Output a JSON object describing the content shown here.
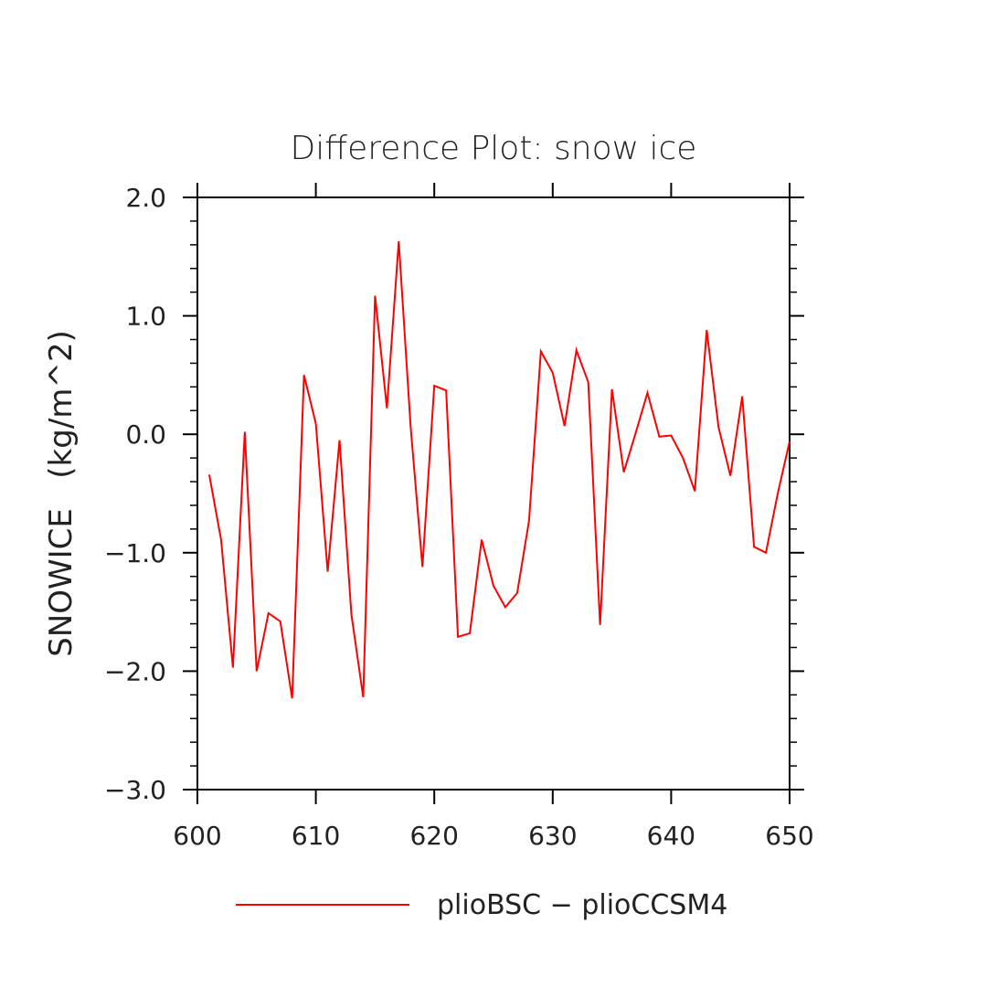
{
  "chart_data": {
    "type": "line",
    "title": "Difference Plot: snow ice",
    "xlabel": "",
    "ylabel": "SNOWICE   (kg/m^2)",
    "xlim": [
      600,
      650
    ],
    "ylim": [
      -3.0,
      2.0
    ],
    "x_ticks": [
      600,
      610,
      620,
      630,
      640,
      650
    ],
    "x_tick_labels": [
      "600",
      "610",
      "620",
      "630",
      "640",
      "650"
    ],
    "y_ticks": [
      2.0,
      1.0,
      0.0,
      -1.0,
      -2.0,
      -3.0
    ],
    "y_tick_labels": [
      "2.0",
      "1.0",
      "0.0",
      "−1.0",
      "−2.0",
      "−3.0"
    ],
    "grid": false,
    "legend_position": "bottom",
    "series": [
      {
        "name": "plioBSC − plioCCSM4",
        "color": "#ff0000",
        "x": [
          601,
          602,
          603,
          604,
          605,
          606,
          607,
          608,
          609,
          610,
          611,
          612,
          613,
          614,
          615,
          616,
          617,
          618,
          619,
          620,
          621,
          622,
          623,
          624,
          625,
          626,
          627,
          628,
          629,
          630,
          631,
          632,
          633,
          634,
          635,
          636,
          637,
          638,
          639,
          640,
          641,
          642,
          643,
          644,
          645,
          646,
          647,
          648,
          649,
          650
        ],
        "values": [
          -0.34,
          -0.89,
          -1.97,
          0.02,
          -2.0,
          -1.51,
          -1.58,
          -2.23,
          0.5,
          0.09,
          -1.16,
          -0.05,
          -1.52,
          -2.22,
          1.17,
          0.22,
          1.63,
          0.07,
          -1.12,
          0.41,
          0.37,
          -1.71,
          -1.68,
          -0.89,
          -1.28,
          -1.46,
          -1.34,
          -0.73,
          0.7,
          0.52,
          0.07,
          0.71,
          0.44,
          -1.61,
          0.38,
          -0.32,
          0.01,
          0.35,
          -0.02,
          -0.01,
          -0.2,
          -0.48,
          0.88,
          0.06,
          -0.35,
          0.32,
          -0.95,
          -1.0,
          -0.5,
          -0.06
        ]
      }
    ]
  }
}
